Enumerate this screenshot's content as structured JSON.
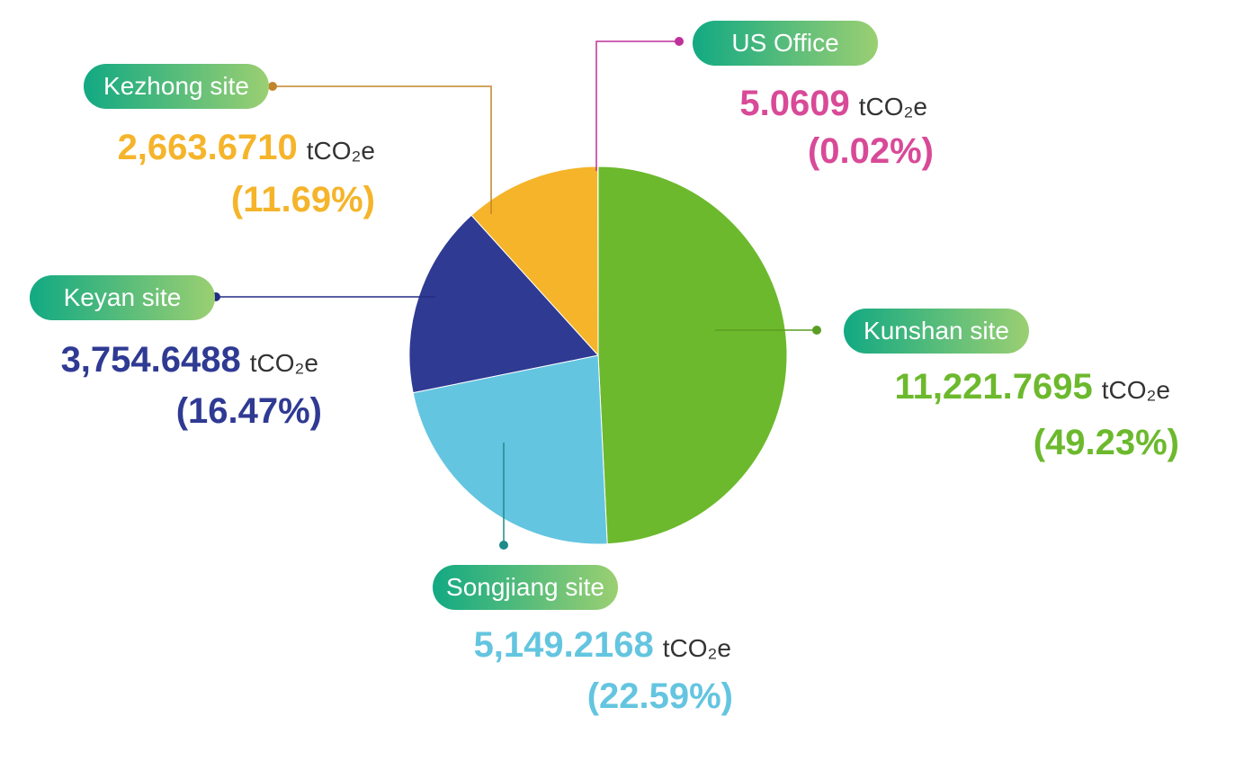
{
  "chart_data": {
    "type": "pie",
    "unit": "tCO₂e",
    "slices": [
      {
        "name": "Kunshan site",
        "value": 11221.7695,
        "value_label": "11,221.7695",
        "percent_label": "(49.23%)",
        "color": "#6cb92d",
        "leader_color": "#5a9e23"
      },
      {
        "name": "Songjiang site",
        "value": 5149.2168,
        "value_label": "5,149.2168",
        "percent_label": "(22.59%)",
        "color": "#64c5e0",
        "leader_color": "#1e8a8a"
      },
      {
        "name": "Keyan site",
        "value": 3754.6488,
        "value_label": "3,754.6488",
        "percent_label": "(16.47%)",
        "color": "#2f3a93",
        "leader_color": "#232c85"
      },
      {
        "name": "Kezhong site",
        "value": 2663.671,
        "value_label": "2,663.6710",
        "percent_label": "(11.69%)",
        "color": "#f5b42a",
        "leader_color": "#c0852a"
      },
      {
        "name": "US Office",
        "value": 5.0609,
        "value_label": "5.0609",
        "percent_label": "(0.02%)",
        "color": "#d84a98",
        "leader_color": "#c0309a"
      }
    ]
  }
}
